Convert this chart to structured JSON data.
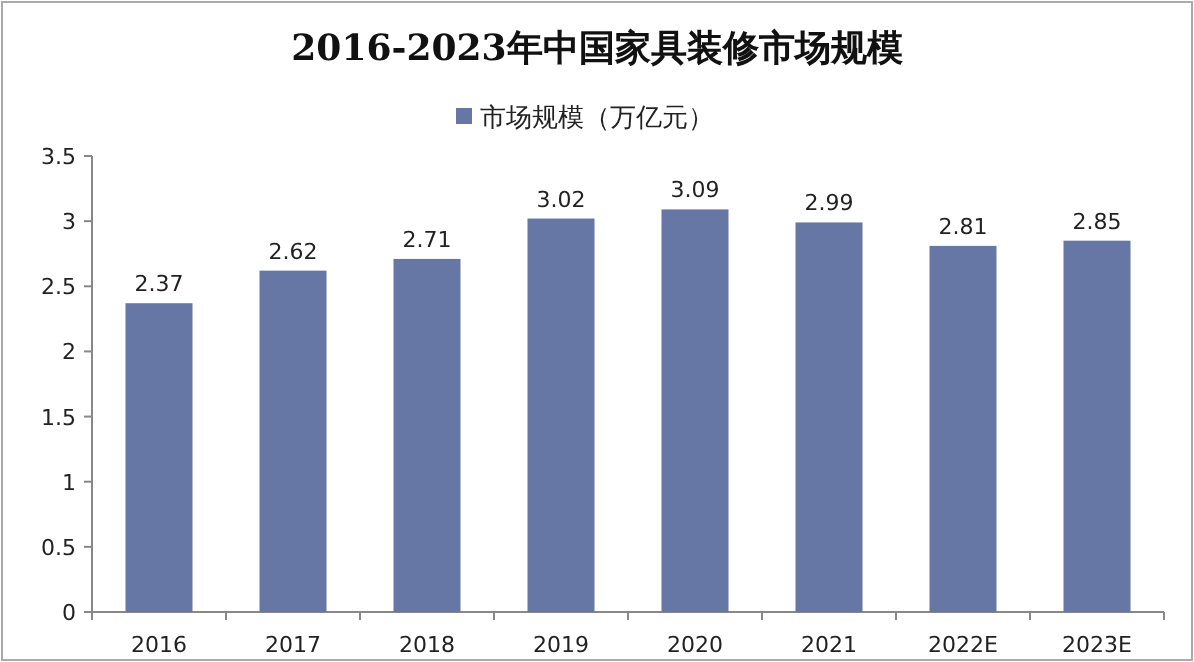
{
  "chart_data": {
    "type": "bar",
    "title": "2016-2023年中国家具装修市场规模",
    "categories": [
      "2016",
      "2017",
      "2018",
      "2019",
      "2020",
      "2021",
      "2022E",
      "2023E"
    ],
    "series": [
      {
        "name": "市场规模（万亿元）",
        "color": "#6677a5",
        "values": [
          2.37,
          2.62,
          2.71,
          3.02,
          3.09,
          2.99,
          2.81,
          2.85
        ]
      }
    ],
    "ylim": [
      0,
      3.5
    ],
    "yticks": [
      0,
      0.5,
      1,
      1.5,
      2,
      2.5,
      3,
      3.5
    ],
    "data_labels": true,
    "legend": "top",
    "grid": false
  }
}
